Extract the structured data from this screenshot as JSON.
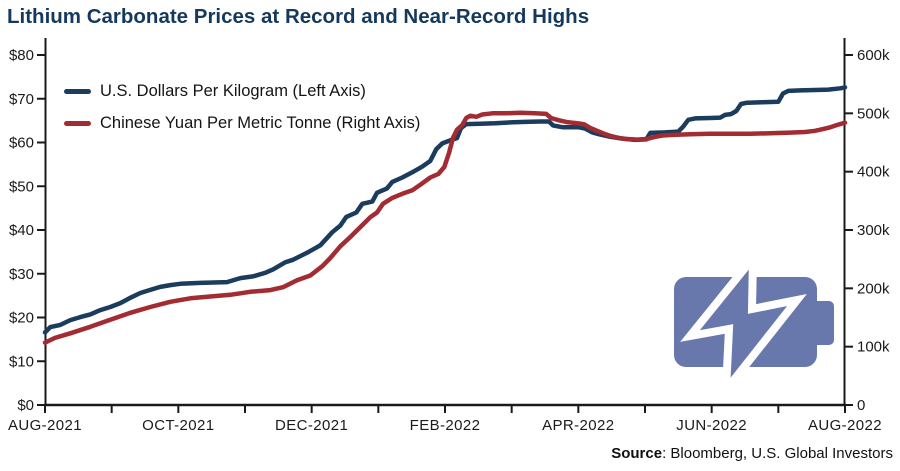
{
  "title": "Lithium Carbonate Prices at Record and Near-Record Highs",
  "legend": [
    {
      "label": "U.S. Dollars Per Kilogram (Left Axis)",
      "color": "#1C3C5E"
    },
    {
      "label": "Chinese Yuan Per Metric Tonne (Right Axis)",
      "color": "#A32C33"
    }
  ],
  "source": {
    "label": "Source",
    "text": ": Bloomberg, U.S. Global Investors"
  },
  "icon": {
    "name": "battery-charging-icon",
    "color": "#6878AC"
  },
  "chart_data": {
    "type": "line",
    "title": "Lithium Carbonate Prices at Record and Near-Record Highs",
    "grid": false,
    "legend_position": "top-left",
    "x_axis": {
      "unit": "months from AUG-2021",
      "min": 0,
      "max": 12,
      "minor_tick_every": 1,
      "label_every": 2,
      "tick_labels": [
        "AUG-2021",
        "OCT-2021",
        "DEC-2021",
        "FEB-2022",
        "APR-2022",
        "JUN-2022",
        "AUG-2022"
      ]
    },
    "y_left": {
      "name": "U.S. Dollars Per Kilogram",
      "min": 0,
      "max": 80,
      "ticks": [
        0,
        10,
        20,
        30,
        40,
        50,
        60,
        70,
        80
      ],
      "tick_labels": [
        "$0",
        "$10",
        "$20",
        "$30",
        "$40",
        "$50",
        "$60",
        "$70",
        "$80"
      ]
    },
    "y_right": {
      "name": "Chinese Yuan Per Metric Tonne",
      "min": 0,
      "max": 600000,
      "ticks": [
        0,
        100000,
        200000,
        300000,
        400000,
        500000,
        600000
      ],
      "tick_labels": [
        "0",
        "100k",
        "200k",
        "300k",
        "400k",
        "500k",
        "600k"
      ]
    },
    "series": [
      {
        "name": "U.S. Dollars Per Kilogram (Left Axis)",
        "axis": "left",
        "color": "#1C3C5E",
        "data_name": "usd-price-line",
        "points": [
          [
            0,
            16.6
          ],
          [
            0.08,
            17.8
          ],
          [
            0.23,
            18.3
          ],
          [
            0.38,
            19.4
          ],
          [
            0.53,
            20.1
          ],
          [
            0.68,
            20.7
          ],
          [
            0.83,
            21.7
          ],
          [
            0.98,
            22.4
          ],
          [
            1.13,
            23.3
          ],
          [
            1.28,
            24.5
          ],
          [
            1.43,
            25.6
          ],
          [
            1.58,
            26.3
          ],
          [
            1.73,
            27
          ],
          [
            1.88,
            27.4
          ],
          [
            2.03,
            27.7
          ],
          [
            2.33,
            27.9
          ],
          [
            2.73,
            28.1
          ],
          [
            2.93,
            29
          ],
          [
            3.12,
            29.4
          ],
          [
            3.3,
            30.2
          ],
          [
            3.42,
            31
          ],
          [
            3.6,
            32.6
          ],
          [
            3.72,
            33.2
          ],
          [
            3.93,
            34.8
          ],
          [
            4.13,
            36.5
          ],
          [
            4.31,
            39.5
          ],
          [
            4.43,
            41
          ],
          [
            4.52,
            43
          ],
          [
            4.67,
            44
          ],
          [
            4.76,
            46
          ],
          [
            4.91,
            46.5
          ],
          [
            4.98,
            48.5
          ],
          [
            5.13,
            49.5
          ],
          [
            5.21,
            51
          ],
          [
            5.36,
            52
          ],
          [
            5.51,
            53.2
          ],
          [
            5.66,
            54.5
          ],
          [
            5.78,
            55.8
          ],
          [
            5.87,
            58.5
          ],
          [
            5.96,
            59.8
          ],
          [
            6.08,
            60.5
          ],
          [
            6.18,
            61
          ],
          [
            6.24,
            63.3
          ],
          [
            6.32,
            64.2
          ],
          [
            6.53,
            64.3
          ],
          [
            6.75,
            64.4
          ],
          [
            6.98,
            64.6
          ],
          [
            7.2,
            64.7
          ],
          [
            7.43,
            64.8
          ],
          [
            7.56,
            64.8
          ],
          [
            7.62,
            63.9
          ],
          [
            7.76,
            63.5
          ],
          [
            8,
            63.5
          ],
          [
            8.1,
            63.2
          ],
          [
            8.21,
            62.3
          ],
          [
            8.33,
            61.8
          ],
          [
            8.48,
            61.3
          ],
          [
            8.66,
            60.9
          ],
          [
            8.85,
            60.6
          ],
          [
            9.02,
            60.7
          ],
          [
            9.08,
            62.2
          ],
          [
            9.3,
            62.3
          ],
          [
            9.5,
            62.5
          ],
          [
            9.57,
            63.6
          ],
          [
            9.65,
            65.2
          ],
          [
            9.75,
            65.5
          ],
          [
            9.98,
            65.6
          ],
          [
            10.13,
            65.7
          ],
          [
            10.2,
            66.3
          ],
          [
            10.29,
            66.5
          ],
          [
            10.37,
            67.2
          ],
          [
            10.44,
            68.8
          ],
          [
            10.53,
            69.1
          ],
          [
            10.76,
            69.2
          ],
          [
            11,
            69.3
          ],
          [
            11.07,
            71.2
          ],
          [
            11.15,
            71.8
          ],
          [
            11.33,
            71.9
          ],
          [
            11.55,
            72
          ],
          [
            11.75,
            72.1
          ],
          [
            11.93,
            72.4
          ],
          [
            12,
            72.6
          ]
        ]
      },
      {
        "name": "Chinese Yuan Per Metric Tonne (Right Axis)",
        "axis": "right",
        "color": "#A32C33",
        "data_name": "yuan-price-line",
        "points": [
          [
            0,
            107000
          ],
          [
            0.15,
            115000
          ],
          [
            0.38,
            123000
          ],
          [
            0.68,
            134000
          ],
          [
            0.98,
            146000
          ],
          [
            1.28,
            158000
          ],
          [
            1.58,
            168000
          ],
          [
            1.88,
            177000
          ],
          [
            2.18,
            183000
          ],
          [
            2.48,
            186000
          ],
          [
            2.78,
            189000
          ],
          [
            3.08,
            194000
          ],
          [
            3.38,
            197000
          ],
          [
            3.57,
            202000
          ],
          [
            3.78,
            214000
          ],
          [
            3.98,
            222000
          ],
          [
            4.16,
            238000
          ],
          [
            4.28,
            252000
          ],
          [
            4.43,
            272000
          ],
          [
            4.58,
            288000
          ],
          [
            4.73,
            305000
          ],
          [
            4.88,
            322000
          ],
          [
            4.98,
            330000
          ],
          [
            5.07,
            345000
          ],
          [
            5.21,
            355000
          ],
          [
            5.36,
            362000
          ],
          [
            5.51,
            368000
          ],
          [
            5.66,
            380000
          ],
          [
            5.78,
            390000
          ],
          [
            5.9,
            396000
          ],
          [
            5.99,
            408000
          ],
          [
            6.06,
            432000
          ],
          [
            6.12,
            458000
          ],
          [
            6.18,
            472000
          ],
          [
            6.26,
            480000
          ],
          [
            6.32,
            492000
          ],
          [
            6.38,
            496000
          ],
          [
            6.47,
            494000
          ],
          [
            6.56,
            498000
          ],
          [
            6.71,
            500000
          ],
          [
            6.9,
            500000
          ],
          [
            7.13,
            501000
          ],
          [
            7.35,
            500000
          ],
          [
            7.52,
            499000
          ],
          [
            7.59,
            492000
          ],
          [
            7.71,
            488000
          ],
          [
            7.83,
            485000
          ],
          [
            8,
            483000
          ],
          [
            8.09,
            481000
          ],
          [
            8.18,
            475000
          ],
          [
            8.28,
            470000
          ],
          [
            8.39,
            465000
          ],
          [
            8.49,
            461000
          ],
          [
            8.6,
            458000
          ],
          [
            8.72,
            456000
          ],
          [
            8.88,
            455000
          ],
          [
            9.03,
            456000
          ],
          [
            9.12,
            459000
          ],
          [
            9.26,
            462000
          ],
          [
            9.42,
            463000
          ],
          [
            9.68,
            464000
          ],
          [
            9.98,
            465000
          ],
          [
            10.28,
            465000
          ],
          [
            10.58,
            465000
          ],
          [
            10.88,
            466000
          ],
          [
            11.18,
            467000
          ],
          [
            11.4,
            468000
          ],
          [
            11.55,
            470000
          ],
          [
            11.67,
            473000
          ],
          [
            11.78,
            476000
          ],
          [
            11.88,
            480000
          ],
          [
            12,
            484000
          ]
        ]
      }
    ]
  }
}
